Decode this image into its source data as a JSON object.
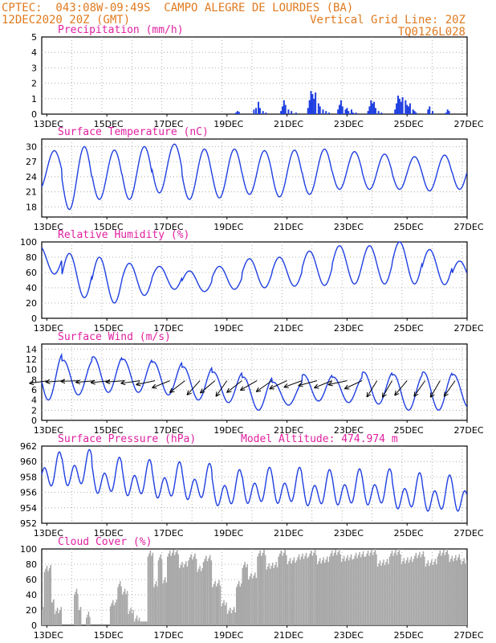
{
  "header": {
    "station": "CPTEC:  043:08W-09:49S  CAMPO ALEGRE DE LOURDES (BA)",
    "run": "12DEC2020 20Z (GMT)",
    "grid_note": "Vertical Grid Line: 20Z",
    "model_id": "TQ0126L028",
    "model_altitude": "Model Altitude: 474.974 m"
  },
  "colors": {
    "header": "#e07a1f",
    "panel_title": "#e020a0",
    "line": "#1f3fe0",
    "bars": "#1f3fe0",
    "cloud": "#a8a8a8",
    "arrows": "#000000",
    "grid": "#9a9a9a"
  },
  "chart_data": [
    {
      "type": "bar",
      "id": "precip",
      "title": "Precipitation (mm/h)",
      "ylim": [
        0,
        5
      ],
      "yticks": [
        "0",
        "1",
        "2",
        "3",
        "4",
        "5"
      ],
      "xticks": [
        "13DEC",
        "15DEC",
        "17DEC",
        "19DEC",
        "21DEC",
        "23DEC",
        "25DEC",
        "27DEC"
      ],
      "x_start_day": 12.83,
      "x_end_day": 27.0,
      "bars": [
        [
          19.3,
          0.1
        ],
        [
          19.35,
          0.2
        ],
        [
          19.4,
          0.15
        ],
        [
          19.9,
          0.3
        ],
        [
          19.97,
          0.4
        ],
        [
          20.05,
          0.8
        ],
        [
          20.1,
          0.4
        ],
        [
          20.2,
          0.2
        ],
        [
          20.3,
          0.1
        ],
        [
          20.8,
          0.2
        ],
        [
          20.85,
          0.5
        ],
        [
          20.9,
          0.9
        ],
        [
          20.95,
          0.6
        ],
        [
          21.05,
          0.3
        ],
        [
          21.15,
          0.2
        ],
        [
          21.3,
          0.1
        ],
        [
          21.7,
          0.4
        ],
        [
          21.75,
          0.9
        ],
        [
          21.8,
          1.5
        ],
        [
          21.85,
          1.3
        ],
        [
          21.9,
          1.0
        ],
        [
          21.95,
          1.4
        ],
        [
          22.05,
          0.7
        ],
        [
          22.1,
          0.5
        ],
        [
          22.2,
          0.3
        ],
        [
          22.3,
          0.2
        ],
        [
          22.4,
          0.1
        ],
        [
          22.7,
          0.3
        ],
        [
          22.75,
          0.6
        ],
        [
          22.8,
          0.9
        ],
        [
          22.85,
          0.5
        ],
        [
          22.95,
          0.3
        ],
        [
          23.0,
          0.4
        ],
        [
          23.05,
          0.2
        ],
        [
          23.15,
          0.3
        ],
        [
          23.2,
          0.1
        ],
        [
          23.3,
          0.1
        ],
        [
          23.7,
          0.2
        ],
        [
          23.75,
          0.5
        ],
        [
          23.8,
          0.9
        ],
        [
          23.85,
          0.7
        ],
        [
          23.9,
          0.8
        ],
        [
          23.95,
          0.4
        ],
        [
          24.05,
          0.2
        ],
        [
          24.15,
          0.1
        ],
        [
          24.6,
          0.3
        ],
        [
          24.65,
          0.7
        ],
        [
          24.7,
          1.2
        ],
        [
          24.75,
          1.0
        ],
        [
          24.8,
          0.8
        ],
        [
          24.85,
          1.1
        ],
        [
          24.95,
          0.9
        ],
        [
          25.0,
          0.6
        ],
        [
          25.05,
          0.5
        ],
        [
          25.1,
          0.7
        ],
        [
          25.2,
          0.3
        ],
        [
          25.25,
          0.2
        ],
        [
          25.3,
          0.1
        ],
        [
          25.7,
          0.3
        ],
        [
          25.75,
          0.5
        ],
        [
          25.85,
          0.2
        ],
        [
          26.3,
          0.1
        ],
        [
          26.35,
          0.3
        ],
        [
          26.4,
          0.2
        ]
      ]
    },
    {
      "type": "line",
      "id": "temp",
      "title": "Surface Temperature (nC)",
      "ylim": [
        16,
        31.5
      ],
      "yticks": [
        "18",
        "21",
        "24",
        "27",
        "30"
      ],
      "ytick_values": [
        18,
        21,
        24,
        27,
        30
      ],
      "xticks": [
        "13DEC",
        "15DEC",
        "17DEC",
        "19DEC",
        "21DEC",
        "23DEC",
        "25DEC",
        "27DEC"
      ],
      "x_start_day": 12.83,
      "x_end_day": 27.0,
      "phase": 0.25,
      "max_values": [
        29.2,
        30.0,
        29.3,
        30.0,
        30.5,
        29.5,
        29.5,
        29.2,
        29.3,
        29.5,
        29.0,
        28.5,
        28.0,
        28.3,
        28.5
      ],
      "min_values": [
        21.5,
        17.5,
        19.5,
        19.5,
        20.8,
        19.5,
        19.8,
        20.5,
        20.0,
        20.5,
        21.5,
        21.5,
        21.5,
        21.2,
        21.5
      ]
    },
    {
      "type": "line",
      "id": "rh",
      "title": "Relative Humidity (%)",
      "ylim": [
        0,
        100
      ],
      "yticks": [
        "0",
        "20",
        "40",
        "60",
        "80",
        "100"
      ],
      "ytick_values": [
        0,
        20,
        40,
        60,
        80,
        100
      ],
      "xticks": [
        "13DEC",
        "15DEC",
        "17DEC",
        "19DEC",
        "21DEC",
        "23DEC",
        "25DEC",
        "27DEC"
      ],
      "x_start_day": 12.83,
      "x_end_day": 27.0,
      "phase": 0.75,
      "max_values": [
        95,
        85,
        80,
        72,
        68,
        62,
        68,
        78,
        80,
        88,
        95,
        95,
        100,
        90,
        75
      ],
      "min_values": [
        58,
        27,
        20,
        30,
        38,
        35,
        38,
        40,
        42,
        43,
        45,
        45,
        45,
        44,
        42
      ]
    },
    {
      "type": "line",
      "id": "wind",
      "title": "Surface Wind (m/s)",
      "ylim": [
        0,
        15
      ],
      "yticks": [
        "0",
        "2",
        "4",
        "6",
        "8",
        "10",
        "12",
        "14"
      ],
      "ytick_values": [
        0,
        2,
        4,
        6,
        8,
        10,
        12,
        14
      ],
      "xticks": [
        "13DEC",
        "15DEC",
        "17DEC",
        "19DEC",
        "21DEC",
        "23DEC",
        "25DEC",
        "27DEC"
      ],
      "x_start_day": 12.83,
      "x_end_day": 27.0,
      "phase": 0.55,
      "max_values": [
        13.2,
        11.8,
        12.5,
        12.0,
        11.5,
        10.5,
        9.5,
        8.5,
        7.5,
        9.0,
        8.5,
        9.5,
        9.0,
        9.5,
        9.0
      ],
      "min_values": [
        4.0,
        5.0,
        5.5,
        5.5,
        5.0,
        4.0,
        3.5,
        2.0,
        3.0,
        3.8,
        3.5,
        3.2,
        2.0,
        2.0,
        2.5
      ],
      "arrows": [
        {
          "day": 13.05,
          "angle": 8
        },
        {
          "day": 13.6,
          "angle": 4
        },
        {
          "day": 14.1,
          "angle": 2
        },
        {
          "day": 14.6,
          "angle": 5
        },
        {
          "day": 15.1,
          "angle": 6
        },
        {
          "day": 15.6,
          "angle": 4
        },
        {
          "day": 16.1,
          "angle": 8
        },
        {
          "day": 16.6,
          "angle": 12
        },
        {
          "day": 17.1,
          "angle": 22
        },
        {
          "day": 17.6,
          "angle": 38
        },
        {
          "day": 18.1,
          "angle": 48
        },
        {
          "day": 18.6,
          "angle": 40
        },
        {
          "day": 19.0,
          "angle": 55
        },
        {
          "day": 19.5,
          "angle": 38
        },
        {
          "day": 20.0,
          "angle": 30
        },
        {
          "day": 20.5,
          "angle": 35
        },
        {
          "day": 21.0,
          "angle": 25
        },
        {
          "day": 21.5,
          "angle": 20
        },
        {
          "day": 22.0,
          "angle": 15
        },
        {
          "day": 22.5,
          "angle": 22
        },
        {
          "day": 23.0,
          "angle": 12
        },
        {
          "day": 23.5,
          "angle": 25
        },
        {
          "day": 24.0,
          "angle": 58
        },
        {
          "day": 24.5,
          "angle": 60
        },
        {
          "day": 25.0,
          "angle": 50
        },
        {
          "day": 25.6,
          "angle": 55
        },
        {
          "day": 26.1,
          "angle": 60
        },
        {
          "day": 26.6,
          "angle": 55
        }
      ]
    },
    {
      "type": "line",
      "id": "pres",
      "title": "Surface Pressure (hPa)",
      "ylim": [
        952,
        962
      ],
      "yticks": [
        "952",
        "954",
        "956",
        "958",
        "960",
        "962"
      ],
      "ytick_values": [
        952,
        954,
        956,
        958,
        960,
        962
      ],
      "xticks": [
        "13DEC",
        "15DEC",
        "17DEC",
        "19DEC",
        "21DEC",
        "23DEC",
        "25DEC",
        "27DEC"
      ],
      "x_start_day": 12.83,
      "x_end_day": 27.0,
      "semidiurnal": true,
      "mean_values": [
        958.5,
        958.8,
        957.8,
        957.5,
        957.2,
        957.0,
        956.2,
        956.5,
        956.5,
        956.2,
        956.3,
        956.3,
        955.8,
        955.5,
        955.5
      ],
      "amplitude": 2.3
    },
    {
      "type": "area",
      "id": "cloud",
      "title": "Cloud Cover (%)",
      "ylim": [
        0,
        100
      ],
      "yticks": [
        "0",
        "20",
        "40",
        "60",
        "80",
        "100"
      ],
      "ytick_values": [
        0,
        20,
        40,
        60,
        80,
        100
      ],
      "xticks": [
        "13DEC",
        "15DEC",
        "17DEC",
        "19DEC",
        "21DEC",
        "23DEC",
        "25DEC",
        "27DEC"
      ],
      "x_start_day": 12.83,
      "x_end_day": 27.0,
      "segments": [
        [
          12.83,
          12.9,
          25
        ],
        [
          12.9,
          13.15,
          75
        ],
        [
          13.15,
          13.25,
          35
        ],
        [
          13.25,
          13.5,
          20
        ],
        [
          13.5,
          13.9,
          0
        ],
        [
          13.9,
          14.05,
          45
        ],
        [
          14.05,
          14.15,
          25
        ],
        [
          14.15,
          14.3,
          0
        ],
        [
          14.3,
          14.45,
          15
        ],
        [
          14.45,
          15.1,
          0
        ],
        [
          15.1,
          15.35,
          30
        ],
        [
          15.35,
          15.5,
          55
        ],
        [
          15.5,
          15.7,
          45
        ],
        [
          15.7,
          15.9,
          20
        ],
        [
          15.9,
          16.1,
          10
        ],
        [
          16.1,
          16.35,
          5
        ],
        [
          16.35,
          16.55,
          95
        ],
        [
          16.55,
          16.7,
          55
        ],
        [
          16.7,
          16.85,
          90
        ],
        [
          16.85,
          17.0,
          60
        ],
        [
          17.0,
          17.4,
          95
        ],
        [
          17.4,
          17.7,
          80
        ],
        [
          17.7,
          18.0,
          90
        ],
        [
          18.0,
          18.2,
          75
        ],
        [
          18.2,
          18.5,
          88
        ],
        [
          18.5,
          18.8,
          55
        ],
        [
          18.8,
          19.0,
          30
        ],
        [
          19.0,
          19.3,
          20
        ],
        [
          19.3,
          19.5,
          55
        ],
        [
          19.5,
          19.7,
          80
        ],
        [
          19.7,
          20.0,
          65
        ],
        [
          20.0,
          20.3,
          95
        ],
        [
          20.3,
          20.7,
          78
        ],
        [
          20.7,
          21.0,
          95
        ],
        [
          21.0,
          21.3,
          85
        ],
        [
          21.3,
          21.7,
          90
        ],
        [
          21.7,
          22.0,
          95
        ],
        [
          22.0,
          22.4,
          85
        ],
        [
          22.4,
          22.8,
          95
        ],
        [
          22.8,
          23.2,
          88
        ],
        [
          23.2,
          23.6,
          92
        ],
        [
          23.6,
          24.0,
          95
        ],
        [
          24.0,
          24.4,
          82
        ],
        [
          24.4,
          24.8,
          95
        ],
        [
          24.8,
          25.2,
          85
        ],
        [
          25.2,
          25.6,
          92
        ],
        [
          25.6,
          26.0,
          82
        ],
        [
          26.0,
          26.4,
          95
        ],
        [
          26.4,
          26.8,
          88
        ],
        [
          26.8,
          27.0,
          85
        ]
      ]
    }
  ]
}
